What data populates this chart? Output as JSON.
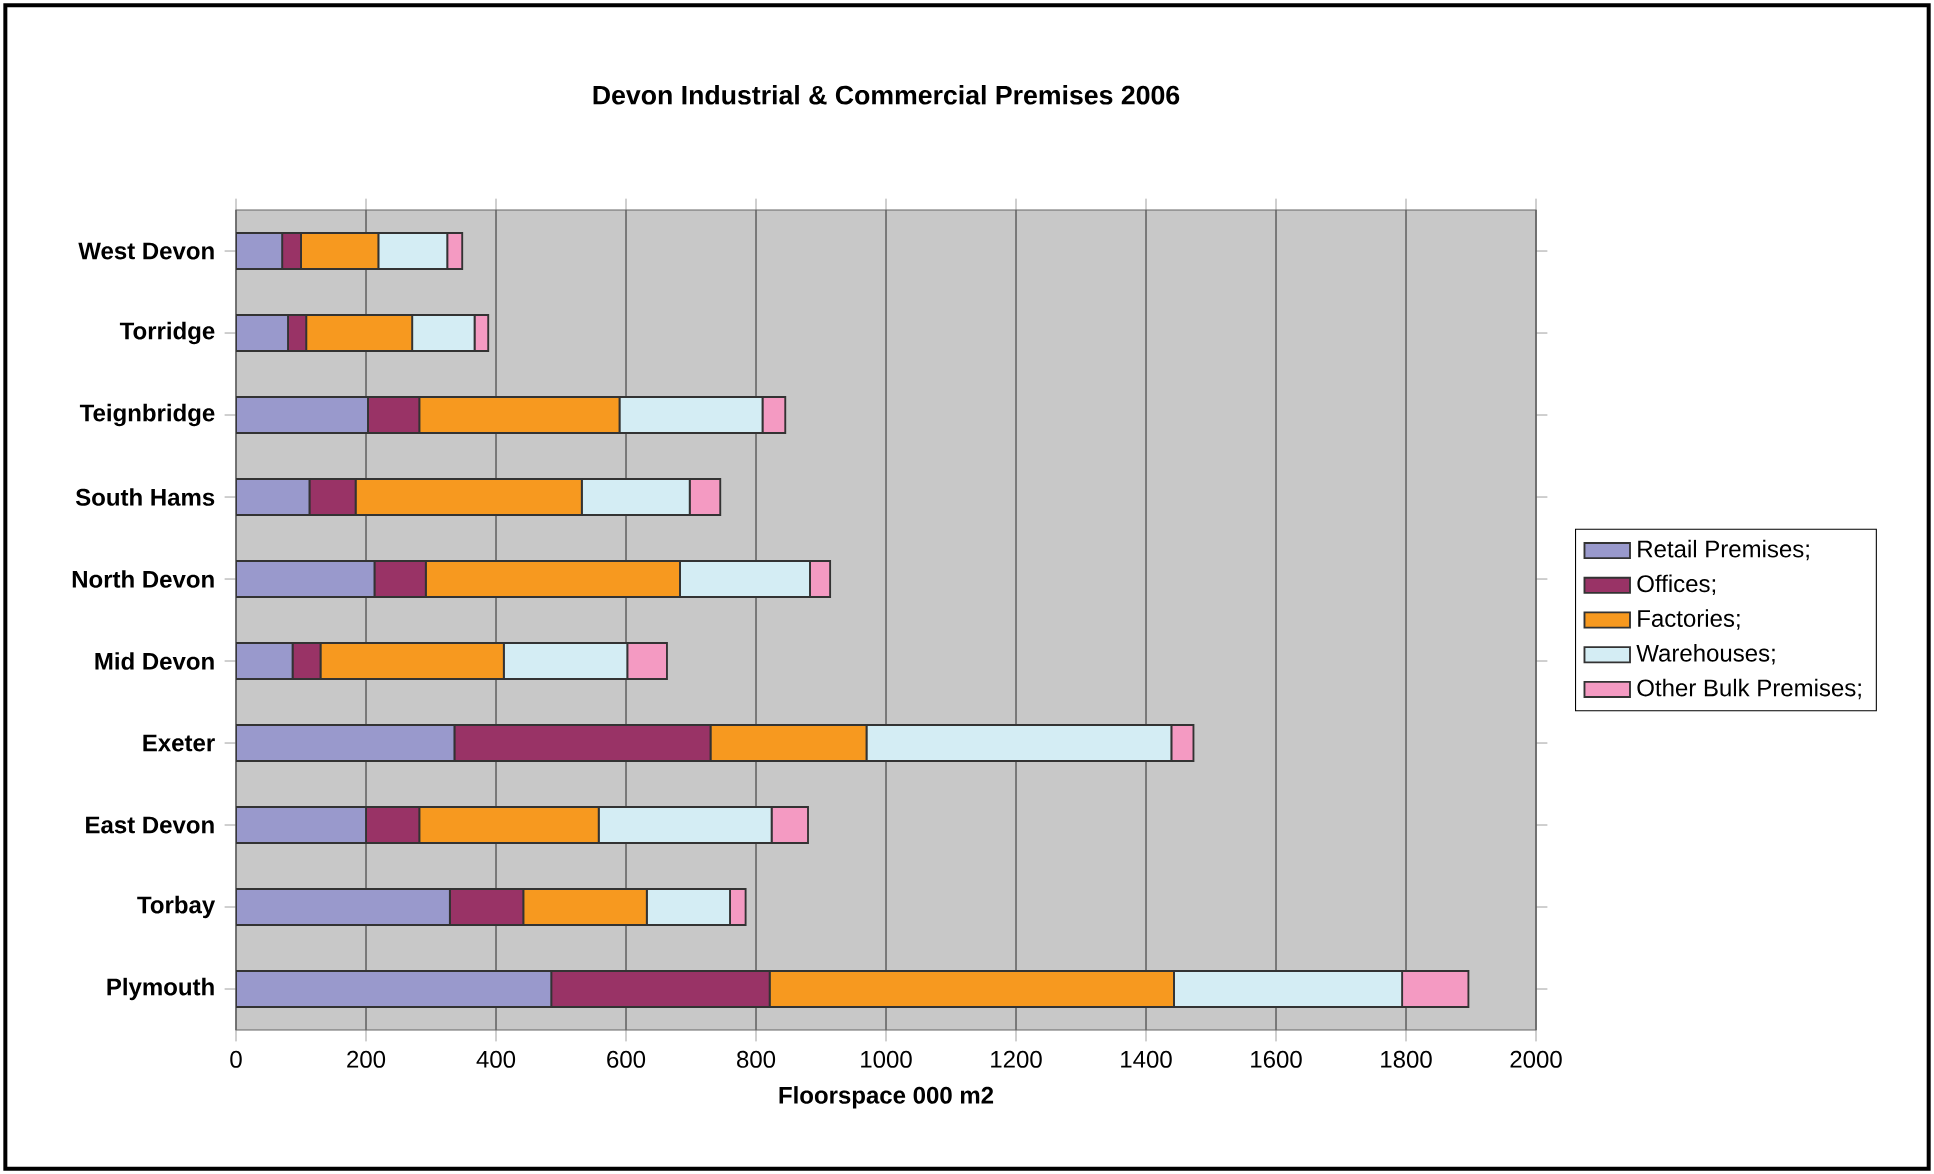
{
  "chart_data": {
    "type": "bar",
    "orientation": "horizontal",
    "stacked": true,
    "title": "Devon Industrial & Commercial Premises  2006",
    "xlabel": "Floorspace 000 m2",
    "categories": [
      "West Devon",
      "Torridge",
      "Teignbridge",
      "South Hams",
      "North Devon",
      "Mid Devon",
      "Exeter",
      "East Devon",
      "Torbay",
      "Plymouth"
    ],
    "series": [
      {
        "name": "Retail Premises;",
        "color": "#9999cc",
        "values": [
          71,
          80,
          203,
          113,
          213,
          87,
          336,
          200,
          329,
          485
        ]
      },
      {
        "name": "Offices;",
        "color": "#993366",
        "values": [
          29,
          28,
          79,
          71,
          79,
          43,
          394,
          82,
          113,
          336
        ]
      },
      {
        "name": "Factories;",
        "color": "#f7991f",
        "values": [
          119,
          163,
          308,
          348,
          391,
          282,
          240,
          276,
          190,
          622
        ]
      },
      {
        "name": "Warehouses;",
        "color": "#d4edf4",
        "values": [
          106,
          96,
          220,
          166,
          200,
          190,
          469,
          266,
          128,
          351
        ]
      },
      {
        "name": "Other Bulk Premises;",
        "color": "#f49ac2",
        "values": [
          23,
          21,
          35,
          47,
          31,
          61,
          34,
          56,
          24,
          102
        ]
      }
    ],
    "xlim": [
      0,
      2000
    ],
    "xticks": [
      0,
      200,
      400,
      600,
      800,
      1000,
      1200,
      1400,
      1600,
      1800,
      2000
    ],
    "grid": "x",
    "legend": "right"
  }
}
